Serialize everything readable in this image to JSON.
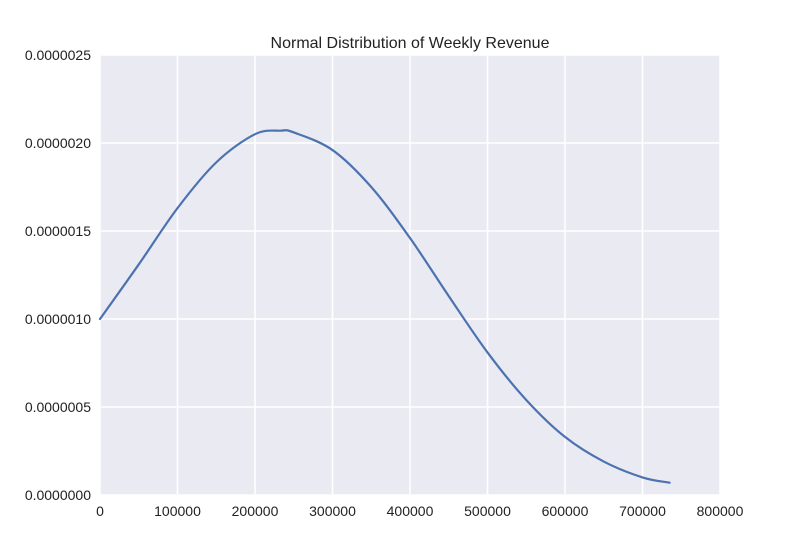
{
  "chart_data": {
    "type": "line",
    "title": "Normal Distribution of Weekly Revenue",
    "xlabel": "",
    "ylabel": "",
    "xlim": [
      0,
      800000
    ],
    "ylim": [
      0,
      2.5e-06
    ],
    "x_ticks": [
      "0",
      "100000",
      "200000",
      "300000",
      "400000",
      "500000",
      "600000",
      "700000",
      "800000"
    ],
    "y_ticks": [
      "0.0000000",
      "0.0000005",
      "0.0000010",
      "0.0000015",
      "0.0000020",
      "0.0000025"
    ],
    "grid": true,
    "legend": "none",
    "colors": {
      "plot_background": "#eaeaf2",
      "grid": "#ffffff",
      "line": "#4c72b0"
    },
    "series": [
      {
        "x": [
          0,
          50000,
          100000,
          150000,
          200000,
          233000,
          250000,
          300000,
          350000,
          400000,
          450000,
          500000,
          550000,
          600000,
          650000,
          700000,
          735000
        ],
        "y": [
          1e-06,
          1.31e-06,
          1.63e-06,
          1.89e-06,
          2.05e-06,
          2.07e-06,
          2.06e-06,
          1.96e-06,
          1.75e-06,
          1.46e-06,
          1.13e-06,
          8.1e-07,
          5.4e-07,
          3.3e-07,
          1.9e-07,
          1e-07,
          7e-08
        ]
      }
    ]
  }
}
